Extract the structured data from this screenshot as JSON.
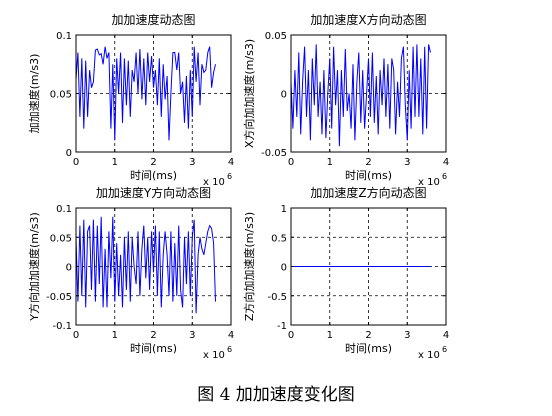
{
  "caption": "图 4  加加速度变化图",
  "chart_data": [
    {
      "type": "line",
      "title": "加加速度动态图",
      "xlabel": "时间(ms)",
      "ylabel": "加加速度(m/s3)",
      "x_exponent": "x 10",
      "x_exponent_power": "6",
      "xlim": [
        0,
        4
      ],
      "ylim": [
        0,
        0.1
      ],
      "xticks": [
        0,
        1,
        2,
        3,
        4
      ],
      "xtick_labels": [
        "0",
        "1",
        "2",
        "3",
        "4"
      ],
      "yticks": [
        0,
        0.05,
        0.1
      ],
      "ytick_labels": [
        "0",
        "0.05",
        "0.1"
      ],
      "grid": true,
      "line_color": "#0000ff",
      "series": [
        {
          "x": [
            0,
            0.05,
            0.1,
            0.15,
            0.2,
            0.25,
            0.3,
            0.35,
            0.4,
            0.45,
            0.5,
            0.55,
            0.6,
            0.65,
            0.7,
            0.75,
            0.8,
            0.85,
            0.9,
            0.95,
            1.0,
            1.05,
            1.1,
            1.15,
            1.2,
            1.25,
            1.3,
            1.35,
            1.4,
            1.45,
            1.5,
            1.55,
            1.6,
            1.65,
            1.7,
            1.75,
            1.8,
            1.85,
            1.9,
            1.95,
            2.0,
            2.05,
            2.1,
            2.15,
            2.2,
            2.25,
            2.3,
            2.35,
            2.4,
            2.45,
            2.5,
            2.55,
            2.6,
            2.65,
            2.7,
            2.75,
            2.8,
            2.85,
            2.9,
            2.95,
            3.0,
            3.05,
            3.1,
            3.15,
            3.2,
            3.25,
            3.3,
            3.35,
            3.4,
            3.45,
            3.5,
            3.55,
            3.6
          ],
          "y": [
            0.062,
            0.085,
            0.03,
            0.08,
            0.02,
            0.078,
            0.03,
            0.07,
            0.055,
            0.06,
            0.087,
            0.088,
            0.083,
            0.084,
            0.075,
            0.09,
            0.08,
            0.085,
            0.02,
            0.075,
            0.01,
            0.08,
            0.05,
            0.085,
            0.025,
            0.08,
            0.04,
            0.078,
            0.03,
            0.07,
            0.06,
            0.085,
            0.05,
            0.088,
            0.045,
            0.08,
            0.04,
            0.085,
            0.06,
            0.082,
            0.055,
            0.07,
            0.04,
            0.08,
            0.03,
            0.075,
            0.045,
            0.065,
            0.01,
            0.05,
            0.085,
            0.085,
            0.07,
            0.085,
            0.05,
            0.06,
            0.025,
            0.065,
            0.02,
            0.07,
            0.03,
            0.09,
            0.06,
            0.085,
            0.04,
            0.075,
            0.068,
            0.07,
            0.085,
            0.09,
            0.055,
            0.068,
            0.075
          ]
        }
      ]
    },
    {
      "type": "line",
      "title": "加加速度X方向动态图",
      "xlabel": "时间(ms)",
      "ylabel": "X方向加加速度(m/s3)",
      "x_exponent": "x 10",
      "x_exponent_power": "6",
      "xlim": [
        0,
        4
      ],
      "ylim": [
        -0.05,
        0.05
      ],
      "xticks": [
        0,
        1,
        2,
        3,
        4
      ],
      "xtick_labels": [
        "0",
        "1",
        "2",
        "3",
        "4"
      ],
      "yticks": [
        -0.05,
        0,
        0.05
      ],
      "ytick_labels": [
        "-0.05",
        "0",
        "0.05"
      ],
      "grid": true,
      "line_color": "#0000ff",
      "series": [
        {
          "x": [
            0,
            0.05,
            0.1,
            0.15,
            0.2,
            0.25,
            0.3,
            0.35,
            0.4,
            0.45,
            0.5,
            0.55,
            0.6,
            0.65,
            0.7,
            0.75,
            0.8,
            0.85,
            0.9,
            0.95,
            1.0,
            1.05,
            1.1,
            1.15,
            1.2,
            1.25,
            1.3,
            1.35,
            1.4,
            1.45,
            1.5,
            1.55,
            1.6,
            1.65,
            1.7,
            1.75,
            1.8,
            1.85,
            1.9,
            1.95,
            2.0,
            2.05,
            2.1,
            2.15,
            2.2,
            2.25,
            2.3,
            2.35,
            2.4,
            2.45,
            2.5,
            2.55,
            2.6,
            2.65,
            2.7,
            2.75,
            2.8,
            2.85,
            2.9,
            2.95,
            3.0,
            3.05,
            3.1,
            3.15,
            3.2,
            3.25,
            3.3,
            3.35,
            3.4,
            3.45,
            3.5,
            3.55,
            3.6
          ],
          "y": [
            0.01,
            -0.03,
            0.02,
            -0.02,
            0.035,
            -0.035,
            0.01,
            0.04,
            -0.02,
            0.02,
            -0.04,
            0.03,
            -0.01,
            0.042,
            -0.02,
            0.01,
            -0.035,
            0.02,
            -0.038,
            0.0,
            0.03,
            -0.03,
            0.04,
            -0.01,
            0.02,
            -0.045,
            0.02,
            -0.02,
            0.038,
            -0.015,
            0.0,
            -0.03,
            0.025,
            -0.04,
            0.01,
            0.035,
            -0.025,
            0.02,
            -0.03,
            0.0,
            0.03,
            -0.02,
            0.035,
            -0.025,
            0.015,
            -0.035,
            0.02,
            -0.01,
            0.03,
            -0.02,
            0.025,
            -0.03,
            0.03,
            0.02,
            -0.035,
            0.01,
            -0.02,
            0.03,
            0.04,
            -0.01,
            -0.04,
            0.02,
            -0.03,
            0.04,
            -0.02,
            0.042,
            -0.02,
            0.03,
            -0.035,
            0.04,
            -0.03,
            0.042,
            0.035
          ]
        }
      ]
    },
    {
      "type": "line",
      "title": "加加速度Y方向动态图",
      "xlabel": "时间(ms)",
      "ylabel": "Y方向加加速度(m/s3)",
      "x_exponent": "x 10",
      "x_exponent_power": "6",
      "xlim": [
        0,
        4
      ],
      "ylim": [
        -0.1,
        0.1
      ],
      "xticks": [
        0,
        1,
        2,
        3,
        4
      ],
      "xtick_labels": [
        "0",
        "1",
        "2",
        "3",
        "4"
      ],
      "yticks": [
        -0.1,
        -0.05,
        0,
        0.05,
        0.1
      ],
      "ytick_labels": [
        "-0.1",
        "-0.05",
        "0",
        "0.05",
        "0.1"
      ],
      "grid": true,
      "line_color": "#0000ff",
      "series": [
        {
          "x": [
            0,
            0.05,
            0.1,
            0.15,
            0.2,
            0.25,
            0.3,
            0.35,
            0.4,
            0.45,
            0.5,
            0.55,
            0.6,
            0.65,
            0.7,
            0.75,
            0.8,
            0.85,
            0.9,
            0.95,
            1.0,
            1.05,
            1.1,
            1.15,
            1.2,
            1.25,
            1.3,
            1.35,
            1.4,
            1.45,
            1.5,
            1.55,
            1.6,
            1.65,
            1.7,
            1.75,
            1.8,
            1.85,
            1.9,
            1.95,
            2.0,
            2.05,
            2.1,
            2.15,
            2.2,
            2.25,
            2.3,
            2.35,
            2.4,
            2.45,
            2.5,
            2.55,
            2.6,
            2.65,
            2.7,
            2.75,
            2.8,
            2.85,
            2.9,
            2.95,
            3.0,
            3.05,
            3.1,
            3.15,
            3.2,
            3.25,
            3.3,
            3.35,
            3.4,
            3.45,
            3.5,
            3.55,
            3.6
          ],
          "y": [
            0.05,
            -0.06,
            0.07,
            -0.05,
            0.08,
            -0.07,
            0.06,
            0.07,
            -0.04,
            0.08,
            -0.06,
            0.07,
            -0.03,
            0.085,
            -0.07,
            0.03,
            -0.07,
            0.06,
            -0.02,
            0.085,
            -0.06,
            0.04,
            -0.05,
            0.02,
            -0.07,
            0.05,
            -0.04,
            0.06,
            -0.06,
            0.05,
            0.0,
            -0.03,
            0.06,
            -0.05,
            0.03,
            0.07,
            -0.02,
            0.05,
            -0.04,
            0.06,
            -0.01,
            0.07,
            -0.05,
            0.06,
            -0.07,
            0.02,
            0.06,
            0.02,
            -0.05,
            0.06,
            -0.06,
            0.04,
            -0.05,
            0.07,
            -0.04,
            -0.07,
            0.05,
            -0.03,
            0.06,
            -0.05,
            0.05,
            0.08,
            -0.08,
            0.02,
            0.05,
            0.03,
            0.02,
            0.04,
            0.06,
            0.07,
            0.065,
            0.04,
            -0.06
          ]
        }
      ]
    },
    {
      "type": "line",
      "title": "加加速度Z方向动态图",
      "xlabel": "时间(ms)",
      "ylabel": "Z方向加加速度(m/s3)",
      "x_exponent": "x 10",
      "x_exponent_power": "6",
      "xlim": [
        0,
        4
      ],
      "ylim": [
        -1,
        1
      ],
      "xticks": [
        0,
        1,
        2,
        3,
        4
      ],
      "xtick_labels": [
        "0",
        "1",
        "2",
        "3",
        "4"
      ],
      "yticks": [
        -1,
        -0.5,
        0,
        0.5,
        1
      ],
      "ytick_labels": [
        "-1",
        "-0.5",
        "0",
        "0.5",
        "1"
      ],
      "grid": true,
      "line_color": "#0000ff",
      "series": [
        {
          "x": [
            0,
            3.6
          ],
          "y": [
            0,
            0
          ]
        }
      ]
    }
  ]
}
